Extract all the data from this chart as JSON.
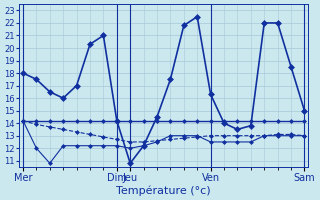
{
  "title": "Température (°c)",
  "bg_color": "#cce8ef",
  "grid_color": "#a8c8d8",
  "line_color": "#1030a0",
  "ylim": [
    10.5,
    23.5
  ],
  "yticks": [
    11,
    12,
    13,
    14,
    15,
    16,
    17,
    18,
    19,
    20,
    21,
    22,
    23
  ],
  "x_major_labels": [
    "Mer",
    "Dim",
    "Jeu",
    "Ven",
    "Sam"
  ],
  "x_major_pos": [
    0,
    7,
    8,
    14,
    21
  ],
  "n_points": 22,
  "series": [
    {
      "y": [
        18.0,
        17.5,
        16.5,
        16.0,
        17.0,
        20.3,
        21.0,
        14.2,
        10.8,
        12.2,
        14.5,
        17.5,
        21.8,
        22.5,
        16.3,
        14.0,
        13.5,
        13.8,
        22.0,
        22.0,
        18.5,
        15.0
      ],
      "lw": 1.2,
      "ls": "-",
      "marker": "D",
      "ms": 3
    },
    {
      "y": [
        14.2,
        14.2,
        14.2,
        14.2,
        14.2,
        14.2,
        14.2,
        14.2,
        14.2,
        14.2,
        14.2,
        14.2,
        14.2,
        14.2,
        14.2,
        14.2,
        14.2,
        14.2,
        14.2,
        14.2,
        14.2,
        14.2
      ],
      "lw": 1.0,
      "ls": "-",
      "marker": "D",
      "ms": 2
    },
    {
      "y": [
        14.2,
        13.9,
        13.7,
        13.5,
        13.3,
        13.1,
        12.9,
        12.7,
        12.5,
        12.5,
        12.6,
        12.7,
        12.8,
        12.9,
        13.0,
        13.0,
        13.0,
        13.0,
        13.0,
        13.1,
        13.1,
        13.0
      ],
      "lw": 0.8,
      "ls": "--",
      "marker": "D",
      "ms": 2
    },
    {
      "y": [
        14.2,
        12.0,
        10.8,
        12.2,
        12.2,
        12.2,
        12.2,
        12.2,
        12.0,
        12.2,
        12.5,
        13.0,
        13.0,
        13.0,
        12.5,
        12.5,
        12.5,
        12.5,
        13.0,
        13.0,
        13.0,
        13.0
      ],
      "lw": 0.8,
      "ls": "-",
      "marker": "D",
      "ms": 2
    }
  ]
}
